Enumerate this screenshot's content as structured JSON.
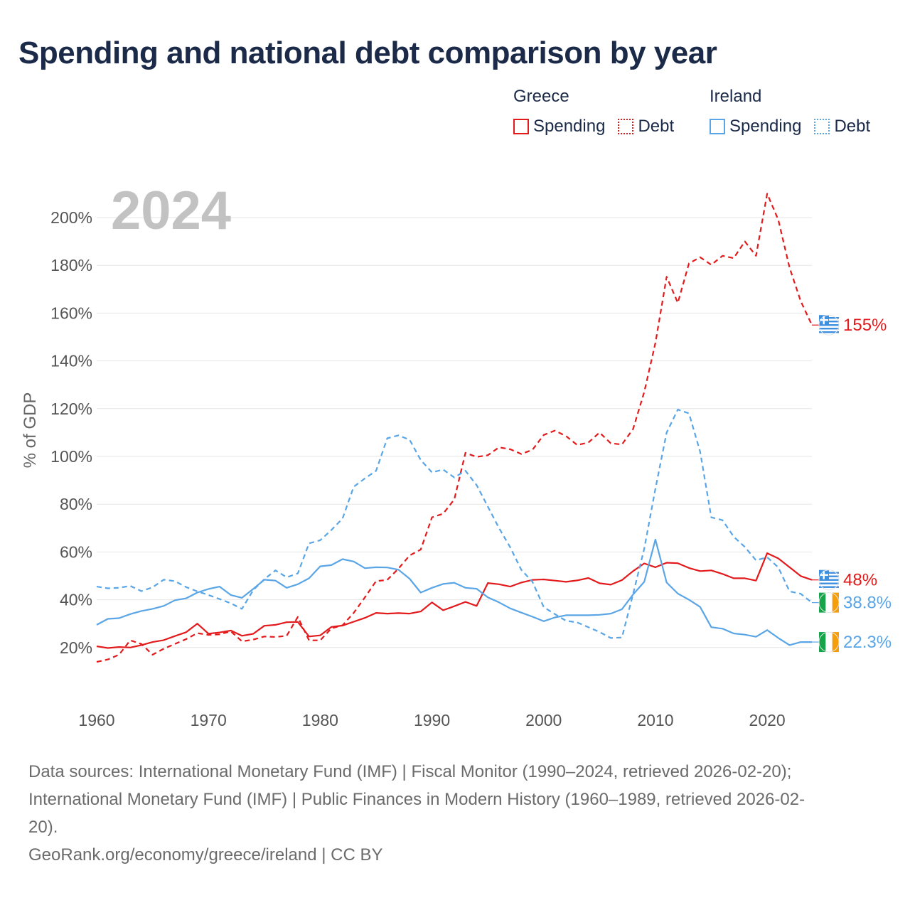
{
  "title": "Spending and national debt comparison by year",
  "legend": {
    "groups": [
      {
        "name": "Greece",
        "spending_label": "Spending",
        "debt_label": "Debt",
        "color": "#e31a1c"
      },
      {
        "name": "Ireland",
        "spending_label": "Spending",
        "debt_label": "Debt",
        "color": "#5aa5e6"
      }
    ]
  },
  "chart_data": {
    "type": "line",
    "title": "Spending and national debt comparison by year",
    "year_label": "2024",
    "ylabel": "% of GDP",
    "xlabel": "",
    "xlim": [
      1960,
      2024
    ],
    "ylim": [
      0,
      210
    ],
    "x_ticks": [
      1960,
      1970,
      1980,
      1990,
      2000,
      2010,
      2020
    ],
    "y_ticks": [
      20,
      40,
      60,
      80,
      100,
      120,
      140,
      160,
      180,
      200
    ],
    "y_tick_labels": [
      "20%",
      "40%",
      "60%",
      "80%",
      "100%",
      "120%",
      "140%",
      "160%",
      "180%",
      "200%"
    ],
    "grid": true,
    "x": [
      1960,
      1961,
      1962,
      1963,
      1964,
      1965,
      1966,
      1967,
      1968,
      1969,
      1970,
      1971,
      1972,
      1973,
      1974,
      1975,
      1976,
      1977,
      1978,
      1979,
      1980,
      1981,
      1982,
      1983,
      1984,
      1985,
      1986,
      1987,
      1988,
      1989,
      1990,
      1991,
      1992,
      1993,
      1994,
      1995,
      1996,
      1997,
      1998,
      1999,
      2000,
      2001,
      2002,
      2003,
      2004,
      2005,
      2006,
      2007,
      2008,
      2009,
      2010,
      2011,
      2012,
      2013,
      2014,
      2015,
      2016,
      2017,
      2018,
      2019,
      2020,
      2021,
      2022,
      2023,
      2024
    ],
    "series": [
      {
        "name": "Greece Spending",
        "country": "Greece",
        "kind": "spending",
        "color": "#e31a1c",
        "end_label": "48%",
        "values": [
          20.5,
          19.8,
          20.2,
          20.0,
          21.0,
          22.3,
          23.1,
          24.8,
          26.4,
          30.0,
          25.8,
          26.3,
          27.1,
          24.9,
          25.7,
          29.1,
          29.5,
          30.6,
          30.7,
          24.6,
          25.1,
          28.6,
          29.2,
          30.8,
          32.4,
          34.5,
          34.2,
          34.4,
          34.2,
          35.1,
          38.9,
          35.6,
          37.3,
          39.1,
          37.4,
          47.0,
          46.5,
          45.5,
          47.2,
          48.3,
          48.5,
          48.0,
          47.5,
          48.1,
          49.1,
          46.9,
          46.3,
          48.2,
          52.0,
          55.2,
          53.6,
          55.5,
          55.3,
          53.3,
          52.0,
          52.3,
          50.8,
          49.0,
          49.0,
          48.0,
          59.5,
          57.3,
          53.6,
          49.9,
          48.3
        ]
      },
      {
        "name": "Greece Debt",
        "country": "Greece",
        "kind": "debt",
        "color": "#e31a1c",
        "end_label": "155%",
        "values": [
          14.0,
          15.0,
          17.0,
          23.0,
          21.5,
          17.0,
          19.5,
          21.5,
          23.5,
          26.0,
          25.3,
          25.5,
          26.8,
          22.6,
          23.3,
          24.6,
          24.4,
          24.9,
          32.8,
          23.0,
          23.0,
          28.0,
          29.3,
          34.5,
          41.0,
          47.8,
          48.3,
          53.0,
          58.5,
          61.0,
          74.5,
          76.0,
          82.0,
          101.5,
          99.8,
          100.5,
          103.8,
          103.0,
          101.0,
          102.8,
          109.0,
          110.8,
          108.5,
          104.8,
          105.8,
          110.0,
          105.5,
          105.0,
          111.5,
          127.0,
          147.5,
          175.2,
          164.3,
          180.8,
          183.4,
          180.2,
          184.0,
          183.0,
          190.0,
          184.0,
          210.0,
          199.0,
          179.0,
          165.0,
          155.0
        ]
      },
      {
        "name": "Ireland Spending",
        "country": "Ireland",
        "kind": "spending",
        "color": "#5aa5e6",
        "end_label": "22.3%",
        "values": [
          29.5,
          32.0,
          32.3,
          34.0,
          35.3,
          36.2,
          37.4,
          39.8,
          40.6,
          43.0,
          44.5,
          45.5,
          42.0,
          40.8,
          44.5,
          48.4,
          48.0,
          45.0,
          46.5,
          49.0,
          54.0,
          54.5,
          57.0,
          56.0,
          53.2,
          53.6,
          53.5,
          52.6,
          48.8,
          43.0,
          45.0,
          46.6,
          47.1,
          45.0,
          44.6,
          41.0,
          38.9,
          36.4,
          34.6,
          32.9,
          31.0,
          32.6,
          33.5,
          33.5,
          33.5,
          33.7,
          34.2,
          36.0,
          42.2,
          47.5,
          65.2,
          47.2,
          42.6,
          40.0,
          37.0,
          28.5,
          27.9,
          25.9,
          25.4,
          24.5,
          27.3,
          24.0,
          21.0,
          22.3,
          22.3
        ]
      },
      {
        "name": "Ireland Debt",
        "country": "Ireland",
        "kind": "debt",
        "color": "#5aa5e6",
        "end_label": "38.8%",
        "values": [
          45.5,
          44.8,
          45.0,
          45.8,
          43.6,
          45.2,
          48.4,
          47.8,
          45.3,
          43.5,
          42.0,
          40.3,
          38.5,
          36.2,
          44.0,
          48.6,
          52.3,
          49.4,
          51.0,
          63.6,
          64.9,
          69.2,
          74.0,
          87.3,
          90.8,
          94.0,
          107.6,
          108.8,
          107.0,
          98.5,
          93.3,
          94.5,
          91.2,
          94.0,
          88.0,
          79.0,
          70.0,
          62.0,
          52.5,
          47.5,
          36.9,
          34.0,
          31.2,
          30.5,
          28.5,
          26.5,
          24.0,
          24.2,
          42.4,
          61.4,
          86.5,
          110.0,
          119.6,
          118.0,
          102.0,
          74.5,
          73.3,
          66.4,
          62.1,
          56.5,
          57.8,
          53.5,
          43.5,
          42.5,
          38.8
        ]
      }
    ]
  },
  "footer": {
    "sources_line_1": "Data sources: International Monetary Fund (IMF) | Fiscal Monitor (1990–2024, retrieved 2026-02-20);",
    "sources_line_2": "International Monetary Fund (IMF) | Public Finances in Modern History (1960–1989, retrieved 2026-02-",
    "sources_line_3": "20).",
    "credit": "GeoRank.org/economy/greece/ireland | CC BY"
  }
}
